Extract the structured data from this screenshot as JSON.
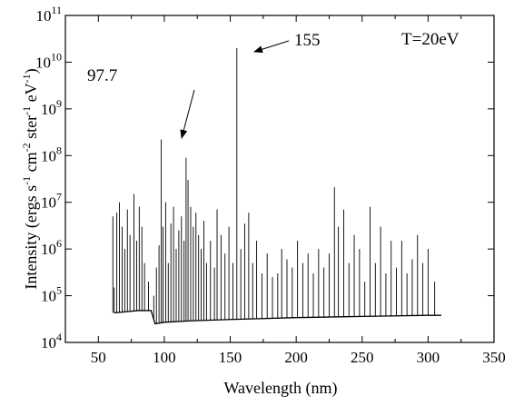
{
  "chart_data": {
    "type": "line",
    "title": "",
    "xlabel": "Wavelength (nm)",
    "ylabel": "Intensity (ergs s⁻¹ cm⁻² ster⁻¹ eV⁻¹)",
    "ylabel_parts": {
      "base": "Intensity (ergs s",
      "sup1": "-1",
      "mid1": " cm",
      "sup2": "-2",
      "mid2": " ster",
      "sup3": "-1",
      "mid3": " eV",
      "sup4": "-1",
      "end": ")"
    },
    "xlim": [
      25,
      350
    ],
    "ylim": [
      10000,
      100000000000
    ],
    "yscale": "log",
    "grid": false,
    "legend": "none",
    "x_ticks": [
      50,
      100,
      150,
      200,
      250,
      300,
      350
    ],
    "x_tick_labels": [
      "50",
      "100",
      "150",
      "200",
      "250",
      "300",
      "350"
    ],
    "y_ticks": [
      {
        "value": 10000,
        "base": "10",
        "exp": "4"
      },
      {
        "value": 100000,
        "base": "10",
        "exp": "5"
      },
      {
        "value": 1000000,
        "base": "10",
        "exp": "6"
      },
      {
        "value": 10000000,
        "base": "10",
        "exp": "7"
      },
      {
        "value": 100000000,
        "base": "10",
        "exp": "8"
      },
      {
        "value": 1000000000,
        "base": "10",
        "exp": "9"
      },
      {
        "value": 10000000000,
        "base": "10",
        "exp": "10"
      },
      {
        "value": 100000000000,
        "base": "10",
        "exp": "11"
      }
    ],
    "continuum": {
      "x": [
        62,
        70,
        80,
        90,
        93,
        100,
        120,
        150,
        200,
        250,
        300,
        310
      ],
      "y": [
        43000,
        45000,
        48000,
        48000,
        25000,
        27000,
        29000,
        31000,
        34000,
        36000,
        38000,
        38000
      ]
    },
    "lines": {
      "x": [
        61,
        62,
        64,
        66,
        68,
        70,
        72,
        74,
        77,
        79,
        81,
        83,
        85,
        88,
        92,
        94,
        96,
        97.7,
        99,
        101,
        103,
        105,
        107,
        109,
        111,
        113,
        115,
        116.5,
        118,
        120,
        122,
        124,
        126,
        128,
        130,
        132,
        135,
        138,
        140,
        143,
        146,
        149,
        152,
        155,
        158,
        161,
        164,
        167,
        170,
        174,
        178,
        182,
        186,
        189,
        193,
        197,
        201,
        205,
        209,
        213,
        217,
        221,
        225,
        229,
        232,
        236,
        240,
        244,
        248,
        252,
        256,
        260,
        264,
        268,
        272,
        276,
        280,
        284,
        288,
        292,
        296,
        300,
        305
      ],
      "y": [
        5000000,
        150000,
        6000000,
        10000000,
        3000000,
        1000000,
        7000000,
        2000000,
        15000000,
        1500000,
        8000000,
        3000000,
        500000,
        200000,
        100000,
        400000,
        1200000,
        220000000,
        3000000,
        10000000,
        500000,
        3500000,
        8000000,
        1000000,
        2500000,
        5000000,
        1500000,
        90000000,
        30000000,
        8000000,
        3000000,
        6000000,
        2000000,
        1000000,
        4000000,
        500000,
        1500000,
        400000,
        7000000,
        2000000,
        800000,
        3000000,
        500000,
        20000000000,
        1000000,
        3500000,
        6000000,
        500000,
        1500000,
        300000,
        800000,
        250000,
        300000,
        1000000,
        600000,
        400000,
        1500000,
        500000,
        800000,
        300000,
        1000000,
        400000,
        800000,
        21000000,
        3000000,
        7000000,
        500000,
        2000000,
        1000000,
        200000,
        8000000,
        500000,
        3000000,
        300000,
        1500000,
        400000,
        1500000,
        300000,
        600000,
        2000000,
        500000,
        1000000,
        200000
      ]
    },
    "annotations": [
      {
        "text": "97.7",
        "x": 97.7,
        "y": 220000000
      },
      {
        "text": "155",
        "x": 155,
        "y": 20000000000
      },
      {
        "text": "T=20eV"
      }
    ]
  }
}
